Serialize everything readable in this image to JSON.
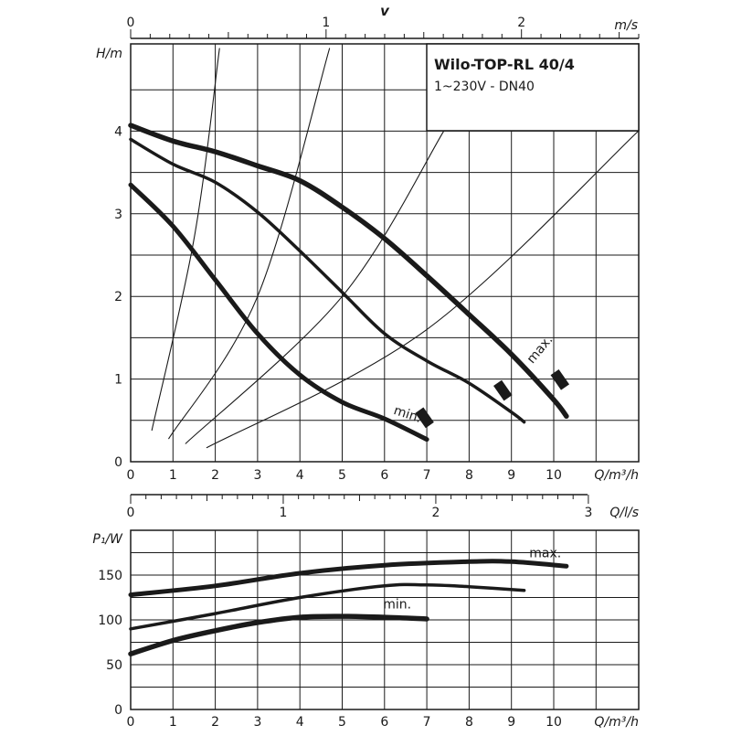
{
  "chart_data": [
    {
      "type": "line",
      "title": "Wilo-TOP-RL 40/4",
      "subtitle": "1~230V - DN40",
      "xlabel": "Q/m³/h",
      "ylabel": "H/m",
      "top_axis": {
        "label_letter": "v",
        "unit": "m/s",
        "ticks": [
          "0",
          "1",
          "2"
        ],
        "values": [
          0,
          1,
          2
        ],
        "range": [
          0,
          2.6
        ]
      },
      "xlim": [
        0,
        12
      ],
      "ylim": [
        0,
        5
      ],
      "x_ticks": [
        "0",
        "1",
        "2",
        "3",
        "4",
        "5",
        "6",
        "7",
        "8",
        "9",
        "10"
      ],
      "y_ticks": [
        "0",
        "1",
        "2",
        "3",
        "4"
      ],
      "grid": true,
      "annotations": [
        {
          "text": "min.",
          "x": 6.2,
          "y": 0.58
        },
        {
          "text": "max.",
          "x": 9.5,
          "y": 1.18
        }
      ],
      "series": [
        {
          "values": [
            [
              0,
              3.35
            ],
            [
              1,
              2.85
            ],
            [
              2,
              2.2
            ],
            [
              3,
              1.55
            ],
            [
              4,
              1.05
            ],
            [
              5,
              0.72
            ],
            [
              6,
              0.52
            ],
            [
              7,
              0.27
            ]
          ]
        },
        {
          "values": [
            [
              0,
              3.9
            ],
            [
              1,
              3.6
            ],
            [
              2,
              3.38
            ],
            [
              3,
              3.02
            ],
            [
              4,
              2.55
            ],
            [
              5,
              2.05
            ],
            [
              6,
              1.55
            ],
            [
              7,
              1.22
            ],
            [
              8,
              0.95
            ],
            [
              9,
              0.6
            ],
            [
              9.3,
              0.48
            ]
          ]
        },
        {
          "values": [
            [
              0,
              4.07
            ],
            [
              1,
              3.88
            ],
            [
              2,
              3.75
            ],
            [
              3,
              3.58
            ],
            [
              4,
              3.4
            ],
            [
              5,
              3.08
            ],
            [
              6,
              2.7
            ],
            [
              7,
              2.25
            ],
            [
              8,
              1.78
            ],
            [
              9,
              1.3
            ],
            [
              10,
              0.75
            ],
            [
              10.3,
              0.55
            ]
          ]
        }
      ],
      "system_curves": [
        {
          "values": [
            [
              0.5,
              0.38
            ],
            [
              1.5,
              2.7
            ],
            [
              2.1,
              5.0
            ]
          ]
        },
        {
          "values": [
            [
              0.9,
              0.28
            ],
            [
              3,
              2.0
            ],
            [
              4.7,
              5.0
            ]
          ]
        },
        {
          "values": [
            [
              1.3,
              0.22
            ],
            [
              5,
              2.0
            ],
            [
              7.4,
              4.0
            ]
          ]
        },
        {
          "values": [
            [
              1.8,
              0.17
            ],
            [
              7,
              1.6
            ],
            [
              12,
              4.0
            ]
          ]
        }
      ]
    },
    {
      "type": "line",
      "xlabel": "Q/m³/h",
      "ylabel": "P₁/W",
      "top_axis": {
        "unit": "Q/l/s",
        "ticks": [
          "0",
          "1",
          "2",
          "3"
        ],
        "values": [
          0,
          1,
          2,
          3
        ],
        "range": [
          0,
          3.33
        ]
      },
      "xlim": [
        0,
        12
      ],
      "ylim": [
        0,
        200
      ],
      "x_ticks": [
        "0",
        "1",
        "2",
        "3",
        "4",
        "5",
        "6",
        "7",
        "8",
        "9",
        "10"
      ],
      "y_ticks": [
        "0",
        "50",
        "100",
        "150"
      ],
      "grid": true,
      "annotations": [
        {
          "text": "max.",
          "x": 9.8,
          "y": 170
        },
        {
          "text": "min.",
          "x": 6.3,
          "y": 113
        }
      ],
      "series": [
        {
          "values": [
            [
              0,
              128
            ],
            [
              2,
              138
            ],
            [
              4,
              152
            ],
            [
              6,
              161
            ],
            [
              8,
              165
            ],
            [
              9,
              165
            ],
            [
              10.3,
              160
            ]
          ]
        },
        {
          "values": [
            [
              0,
              90
            ],
            [
              2,
              107
            ],
            [
              4,
              125
            ],
            [
              6,
              138
            ],
            [
              7,
              139
            ],
            [
              8,
              137
            ],
            [
              9.3,
              133
            ]
          ]
        },
        {
          "values": [
            [
              0,
              62
            ],
            [
              1,
              77
            ],
            [
              2,
              88
            ],
            [
              3,
              97
            ],
            [
              4,
              103
            ],
            [
              5,
              104
            ],
            [
              6,
              103
            ],
            [
              7,
              101
            ]
          ]
        }
      ]
    }
  ]
}
